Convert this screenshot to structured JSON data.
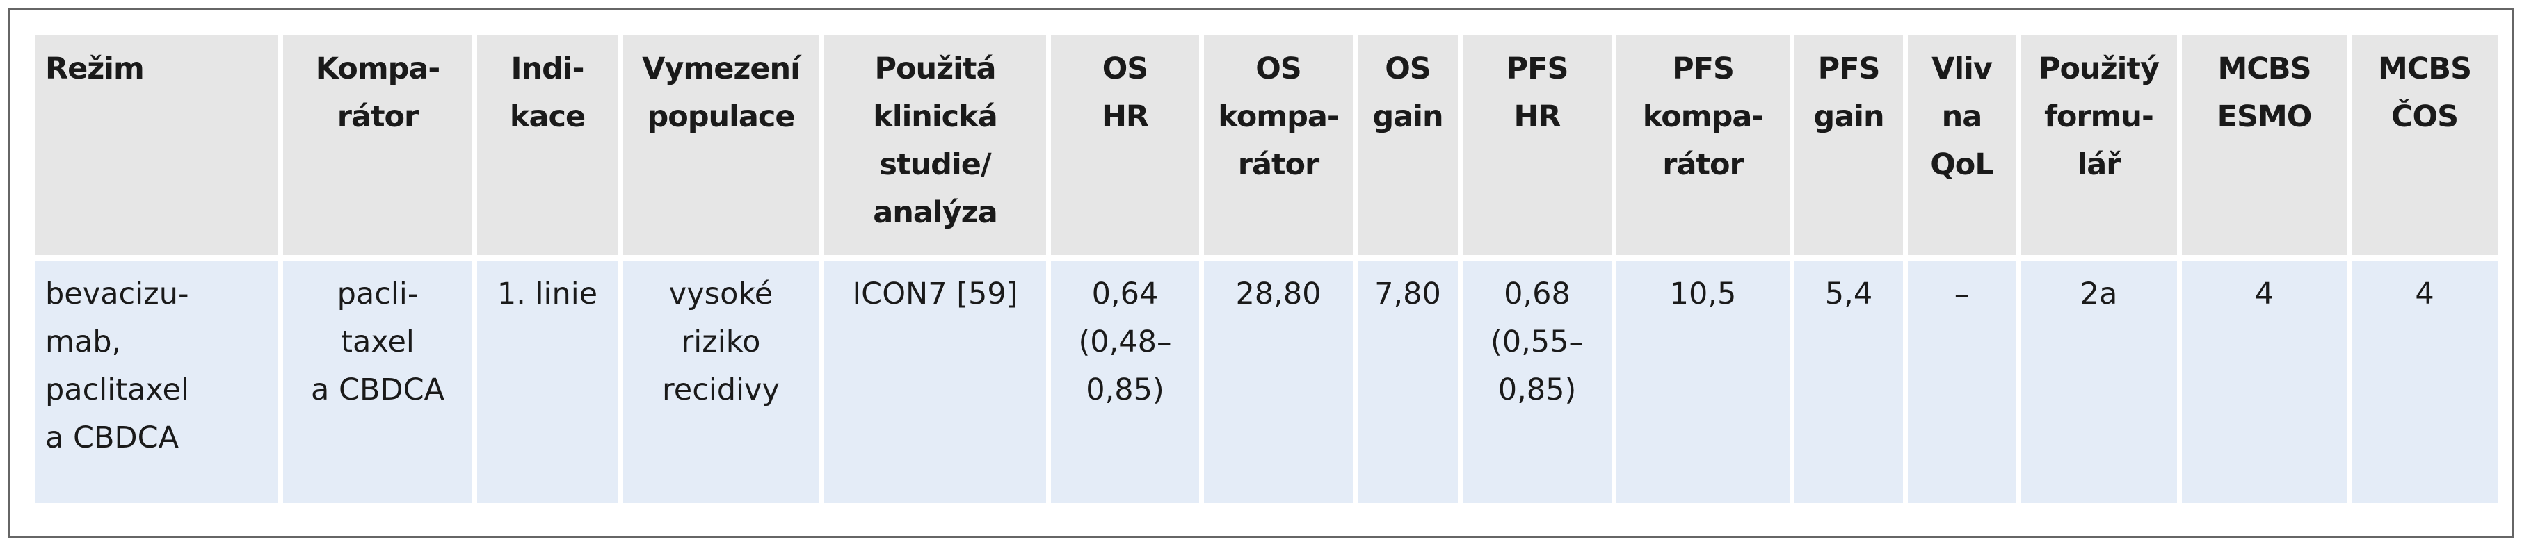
{
  "table": {
    "header": [
      [
        "Režim"
      ],
      [
        "Kompa-",
        "rátor"
      ],
      [
        "Indi-",
        "kace"
      ],
      [
        "Vymezení",
        "populace"
      ],
      [
        "Použitá",
        "klinická",
        "studie/",
        "analýza"
      ],
      [
        "OS",
        "HR"
      ],
      [
        "OS",
        "kompa-",
        "rátor"
      ],
      [
        "OS",
        "gain"
      ],
      [
        "PFS",
        "HR"
      ],
      [
        "PFS",
        "kompa-",
        "rátor"
      ],
      [
        "PFS",
        "gain"
      ],
      [
        "Vliv",
        "na",
        "QoL"
      ],
      [
        "Použitý",
        "formu-",
        "lář"
      ],
      [
        "MCBS",
        "ESMO"
      ],
      [
        "MCBS",
        "ČOS"
      ]
    ],
    "rows": [
      [
        [
          "bevacizu-",
          "mab,",
          "paclitaxel",
          "a CBDCA"
        ],
        [
          "pacli-",
          "taxel",
          "a CBDCA"
        ],
        [
          "1. linie"
        ],
        [
          "vysoké",
          "riziko",
          "recidivy"
        ],
        [
          "ICON7 [59]"
        ],
        [
          "0,64",
          "(0,48–",
          "0,85)"
        ],
        [
          "28,80"
        ],
        [
          "7,80"
        ],
        [
          "0,68",
          "(0,55–",
          "0,85)"
        ],
        [
          "10,5"
        ],
        [
          "5,4"
        ],
        [
          "–"
        ],
        [
          "2a"
        ],
        [
          "4"
        ],
        [
          "4"
        ]
      ]
    ]
  }
}
